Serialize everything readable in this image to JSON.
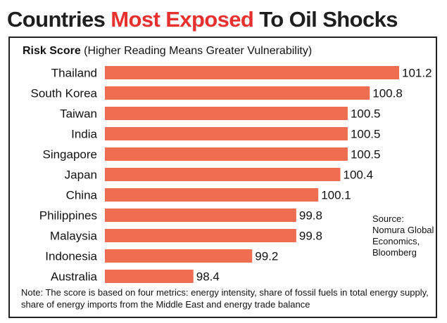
{
  "header": {
    "title_part1": "Countries ",
    "title_part2": "Most Exposed",
    "title_part3": " To Oil Shocks"
  },
  "subtitle": {
    "bold": "Risk Score",
    "rest": " (Higher Reading Means Greater Vulnerability)"
  },
  "source": {
    "lines": [
      "Source:",
      "Nomura Global",
      "Economics,",
      "Bloomberg"
    ]
  },
  "note": "Note: The score is based on four metrics: energy intensity, share of fossil fuels in total energy supply, share of energy imports from the Middle East and energy trade balance",
  "colors": {
    "bar": "#ef6e52",
    "title_accent": "#e8312f",
    "title_dark": "#1e1e1e"
  },
  "chart_data": {
    "type": "bar",
    "orientation": "horizontal",
    "categories": [
      "Thailand",
      "South Korea",
      "Taiwan",
      "India",
      "Singapore",
      "Japan",
      "China",
      "Philippines",
      "Malaysia",
      "Indonesia",
      "Australia"
    ],
    "values": [
      101.2,
      100.8,
      100.5,
      100.5,
      100.5,
      100.4,
      100.1,
      99.8,
      99.8,
      99.2,
      98.4
    ],
    "value_labels": [
      "101.2",
      "100.8",
      "100.5",
      "100.5",
      "100.5",
      "100.4",
      "100.1",
      "99.8",
      "99.8",
      "99.2",
      "98.4"
    ],
    "title": "Countries Most Exposed To Oil Shocks",
    "ylabel": "Risk Score (Higher Reading Means Greater Vulnerability)"
  }
}
